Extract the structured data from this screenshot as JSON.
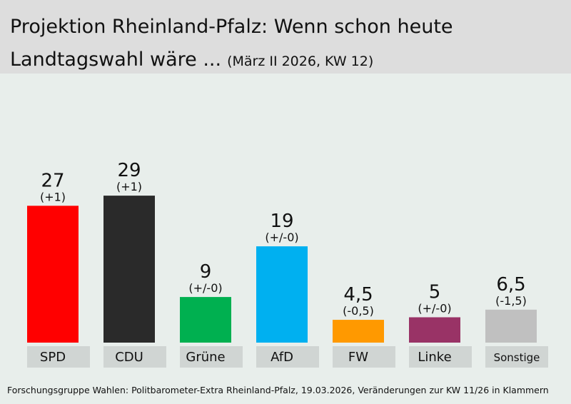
{
  "header": {
    "title_line1": "Projektion Rheinland-Pfalz: Wenn schon heute",
    "title_line2": "Landtagswahl wäre ...",
    "subtitle": "(März II 2026, KW 12)"
  },
  "chart_data": {
    "type": "bar",
    "title": "Projektion Rheinland-Pfalz: Wenn schon heute Landtagswahl wäre ...",
    "subtitle": "(März II 2026, KW 12)",
    "categories": [
      "SPD",
      "CDU",
      "Grüne",
      "AfD",
      "FW",
      "Linke",
      "Sonstige"
    ],
    "values": [
      27,
      29,
      9,
      19,
      4.5,
      5,
      6.5
    ],
    "value_labels": [
      "27",
      "29",
      "9",
      "19",
      "4,5",
      "5",
      "6,5"
    ],
    "change_labels": [
      "(+1)",
      "(+1)",
      "(+/-0)",
      "(+/-0)",
      "(-0,5)",
      "(+/-0)",
      "(-1,5)"
    ],
    "colors": [
      "#ff0000",
      "#2a2a2a",
      "#00b050",
      "#00b0f0",
      "#ff9900",
      "#993366",
      "#c0c0c0"
    ],
    "ylim": [
      0,
      30
    ],
    "xlabel": "",
    "ylabel": ""
  },
  "footer": {
    "source": "Forschungsgruppe Wahlen: Politbarometer-Extra Rheinland-Pfalz, 19.03.2026, Veränderungen zur KW 11/26 in Klammern"
  }
}
